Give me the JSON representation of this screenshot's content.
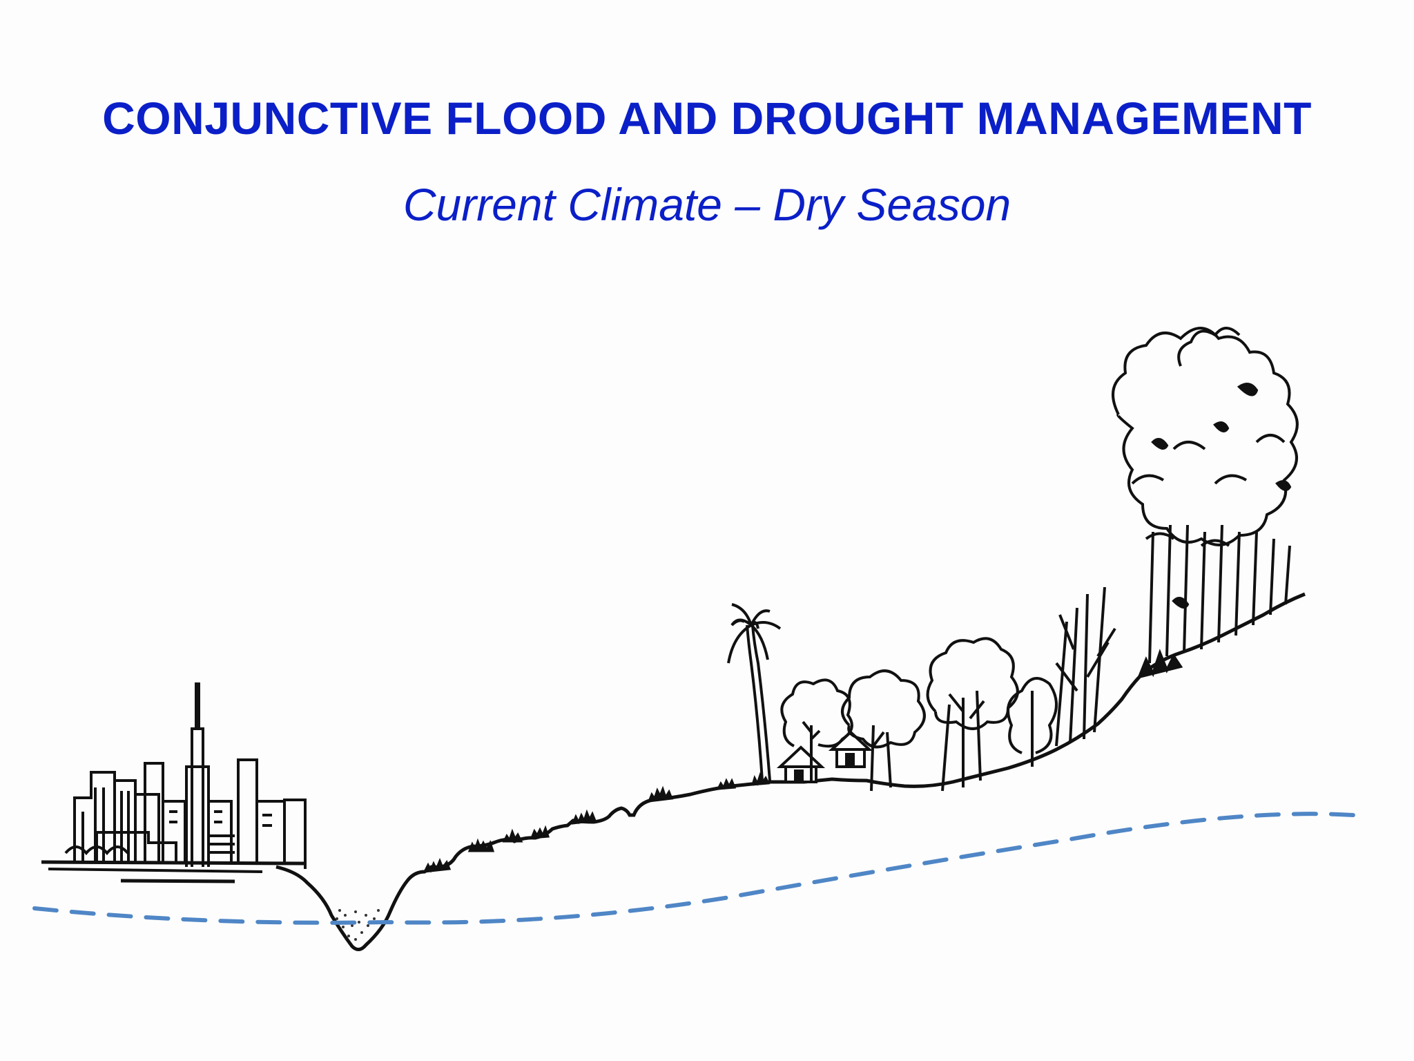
{
  "slide": {
    "title": "CONJUNCTIVE FLOOD AND DROUGHT MANAGEMENT",
    "subtitle": "Current Climate – Dry Season"
  },
  "colors": {
    "text": "#0b1fc8",
    "water_table": "#4f86c6",
    "ink": "#111111"
  },
  "illustration": {
    "elements": [
      "city-skyline",
      "river-channel",
      "terraced-slope",
      "palm-tree",
      "village-huts",
      "trees",
      "forest",
      "water-table-line"
    ]
  }
}
